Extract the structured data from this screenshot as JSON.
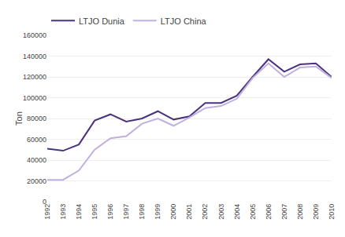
{
  "chart_data": {
    "type": "line",
    "ylabel": "Ton",
    "x": [
      1992,
      1993,
      1994,
      1995,
      1996,
      1997,
      1998,
      1999,
      2000,
      2001,
      2002,
      2003,
      2004,
      2005,
      2006,
      2007,
      2008,
      2009,
      2010
    ],
    "series": [
      {
        "name": "LTJO Dunia",
        "color": "#4B3280",
        "values": [
          51000,
          49000,
          55000,
          78000,
          84000,
          77000,
          80000,
          87000,
          79000,
          82000,
          95000,
          95000,
          102000,
          120000,
          137000,
          125000,
          132000,
          133000,
          120000
        ]
      },
      {
        "name": "LTJO China",
        "color": "#C0B0E0",
        "values": [
          21000,
          21000,
          30000,
          50000,
          61000,
          63000,
          75000,
          80000,
          73000,
          81000,
          90000,
          92000,
          99000,
          119000,
          133000,
          120000,
          129000,
          130000,
          119000
        ]
      }
    ],
    "xlim": [
      1992,
      2010
    ],
    "xticks": [
      1992,
      1993,
      1994,
      1995,
      1996,
      1997,
      1998,
      1999,
      2000,
      2001,
      2002,
      2003,
      2004,
      2005,
      2006,
      2007,
      2008,
      2009,
      2010
    ],
    "ylim": [
      0,
      160000
    ],
    "yticks": [
      0,
      20000,
      40000,
      60000,
      80000,
      100000,
      120000,
      140000,
      160000
    ],
    "grid": true,
    "legend": "top"
  }
}
